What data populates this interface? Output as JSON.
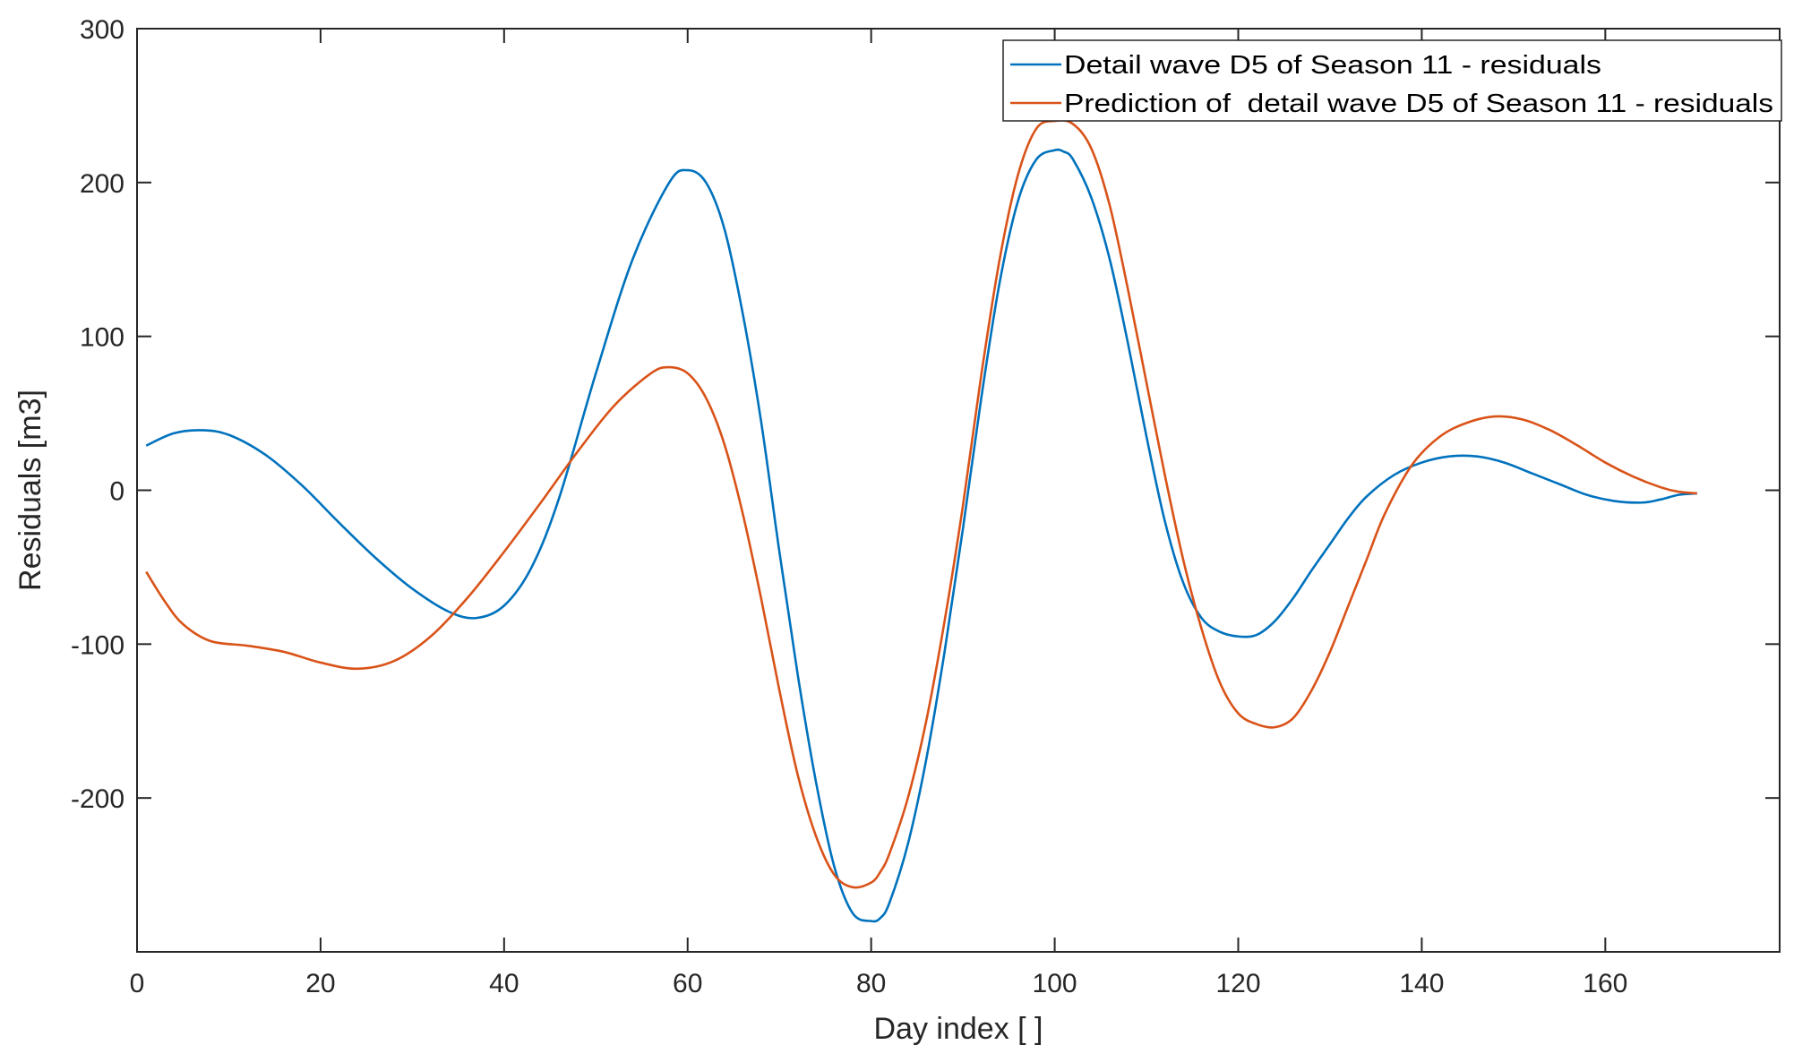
{
  "chart_data": {
    "type": "line",
    "title": "",
    "xlabel": "Day index [ ]",
    "ylabel": "Residuals [m3]",
    "xlim": [
      0,
      179
    ],
    "ylim": [
      -300,
      300
    ],
    "xticks": [
      0,
      20,
      40,
      60,
      80,
      100,
      120,
      140,
      160
    ],
    "yticks": [
      -200,
      -100,
      0,
      100,
      200,
      300
    ],
    "grid": false,
    "legend_position": "top-right",
    "series": [
      {
        "name": "Detail wave D5 of Season 11 - residuals",
        "color": "#0072BD",
        "x": [
          1,
          4,
          7,
          10,
          14,
          18,
          22,
          26,
          30,
          34,
          37,
          40,
          43,
          46,
          50,
          54,
          58,
          60,
          62,
          64,
          66,
          68,
          70,
          72,
          74,
          76,
          78,
          80,
          81,
          82,
          84,
          86,
          88,
          90,
          92,
          94,
          96,
          98,
          100,
          101,
          102,
          104,
          106,
          108,
          110,
          112,
          114,
          116,
          118,
          120,
          122,
          124,
          126,
          128,
          130,
          132,
          134,
          137,
          140,
          143,
          146,
          149,
          152,
          155,
          158,
          161,
          164,
          166,
          168,
          170
        ],
        "y": [
          29,
          37,
          39,
          36,
          23,
          3,
          -21,
          -44,
          -64,
          -79,
          -83,
          -75,
          -50,
          -5,
          76,
          150,
          200,
          208,
          200,
          170,
          115,
          45,
          -40,
          -120,
          -190,
          -245,
          -275,
          -280,
          -278,
          -268,
          -230,
          -175,
          -105,
          -25,
          60,
          135,
          188,
          215,
          221,
          220,
          215,
          190,
          150,
          95,
          35,
          -20,
          -60,
          -83,
          -92,
          -95,
          -94,
          -85,
          -70,
          -52,
          -35,
          -18,
          -4,
          10,
          18,
          22,
          22,
          18,
          11,
          4,
          -3,
          -7,
          -8,
          -6,
          -3,
          -2
        ]
      },
      {
        "name": "Prediction of  detail wave D5 of Season 11 - residuals",
        "color": "#D95319",
        "x": [
          1,
          3,
          5,
          8,
          12,
          16,
          20,
          24,
          28,
          32,
          36,
          40,
          44,
          48,
          52,
          56,
          58,
          60,
          62,
          64,
          66,
          68,
          70,
          72,
          74,
          76,
          78,
          80,
          81,
          82,
          84,
          86,
          88,
          90,
          92,
          94,
          96,
          98,
          100,
          102,
          104,
          106,
          108,
          110,
          112,
          114,
          116,
          118,
          120,
          122,
          124,
          126,
          128,
          130,
          132,
          134,
          136,
          139,
          142,
          145,
          148,
          151,
          154,
          157,
          160,
          163,
          166,
          168,
          170
        ],
        "y": [
          -53,
          -72,
          -87,
          -98,
          -101,
          -105,
          -112,
          -116,
          -111,
          -95,
          -70,
          -40,
          -8,
          25,
          55,
          76,
          80,
          76,
          60,
          30,
          -15,
          -70,
          -130,
          -185,
          -225,
          -250,
          -258,
          -255,
          -248,
          -236,
          -200,
          -150,
          -85,
          -10,
          75,
          150,
          205,
          235,
          240,
          238,
          222,
          185,
          130,
          70,
          10,
          -45,
          -90,
          -125,
          -145,
          -152,
          -154,
          -148,
          -130,
          -105,
          -75,
          -45,
          -15,
          17,
          35,
          44,
          48,
          46,
          39,
          29,
          18,
          9,
          2,
          -1,
          -2
        ]
      }
    ]
  }
}
